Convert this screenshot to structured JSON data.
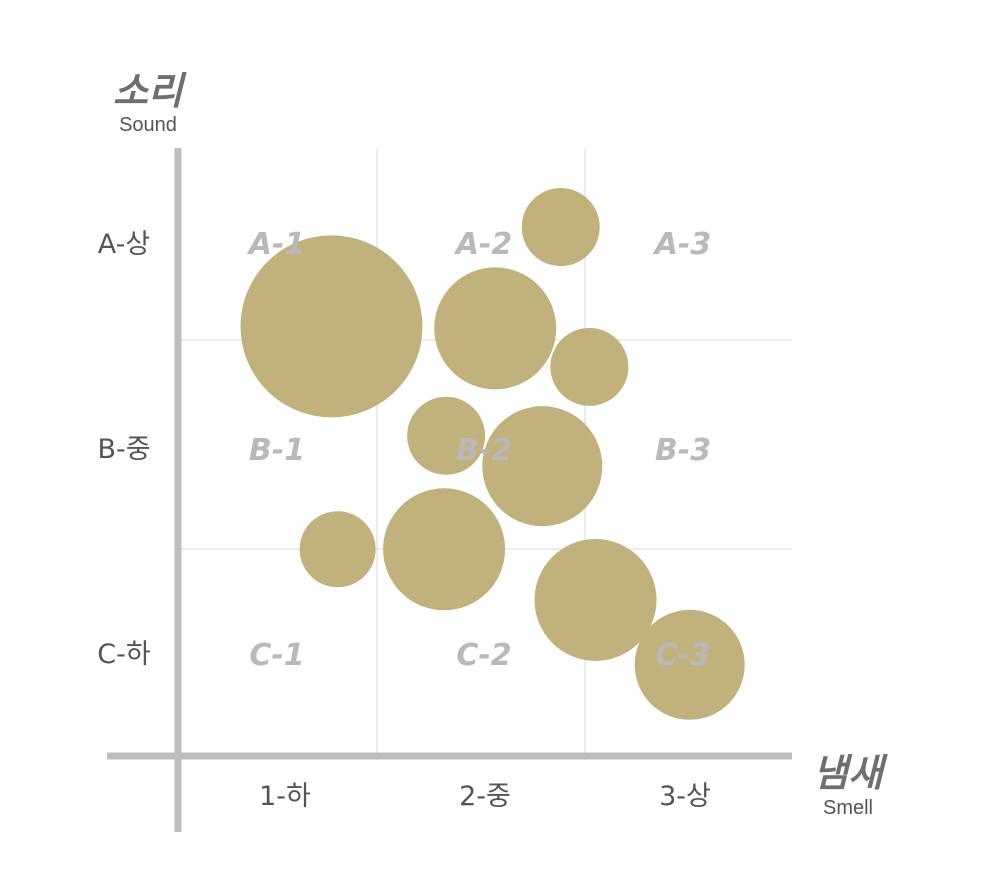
{
  "chart_data": {
    "type": "scatter",
    "y_axis": {
      "title": "소리",
      "subtitle": "Sound",
      "categories": [
        "A-상",
        "B-중",
        "C-하"
      ]
    },
    "x_axis": {
      "title": "냄새",
      "subtitle": "Smell",
      "categories": [
        "1-하",
        "2-중",
        "3-상"
      ]
    },
    "cells": [
      [
        "A-1",
        "A-2",
        "A-3"
      ],
      [
        "B-1",
        "B-2",
        "B-3"
      ],
      [
        "C-1",
        "C-2",
        "C-3"
      ]
    ],
    "xlim": [
      0,
      3
    ],
    "ylim": [
      0,
      3
    ],
    "grid": true,
    "bubble_color": "#bfae79",
    "points": [
      {
        "x": 0.75,
        "y": 2.12,
        "size": 91
      },
      {
        "x": 1.55,
        "y": 2.11,
        "size": 61
      },
      {
        "x": 1.87,
        "y": 2.61,
        "size": 39
      },
      {
        "x": 2.01,
        "y": 1.92,
        "size": 39
      },
      {
        "x": 1.31,
        "y": 1.58,
        "size": 39
      },
      {
        "x": 1.78,
        "y": 1.43,
        "size": 60
      },
      {
        "x": 0.78,
        "y": 1.02,
        "size": 38
      },
      {
        "x": 1.3,
        "y": 1.02,
        "size": 61
      },
      {
        "x": 2.04,
        "y": 0.77,
        "size": 61
      },
      {
        "x": 2.5,
        "y": 0.45,
        "size": 55
      }
    ]
  }
}
